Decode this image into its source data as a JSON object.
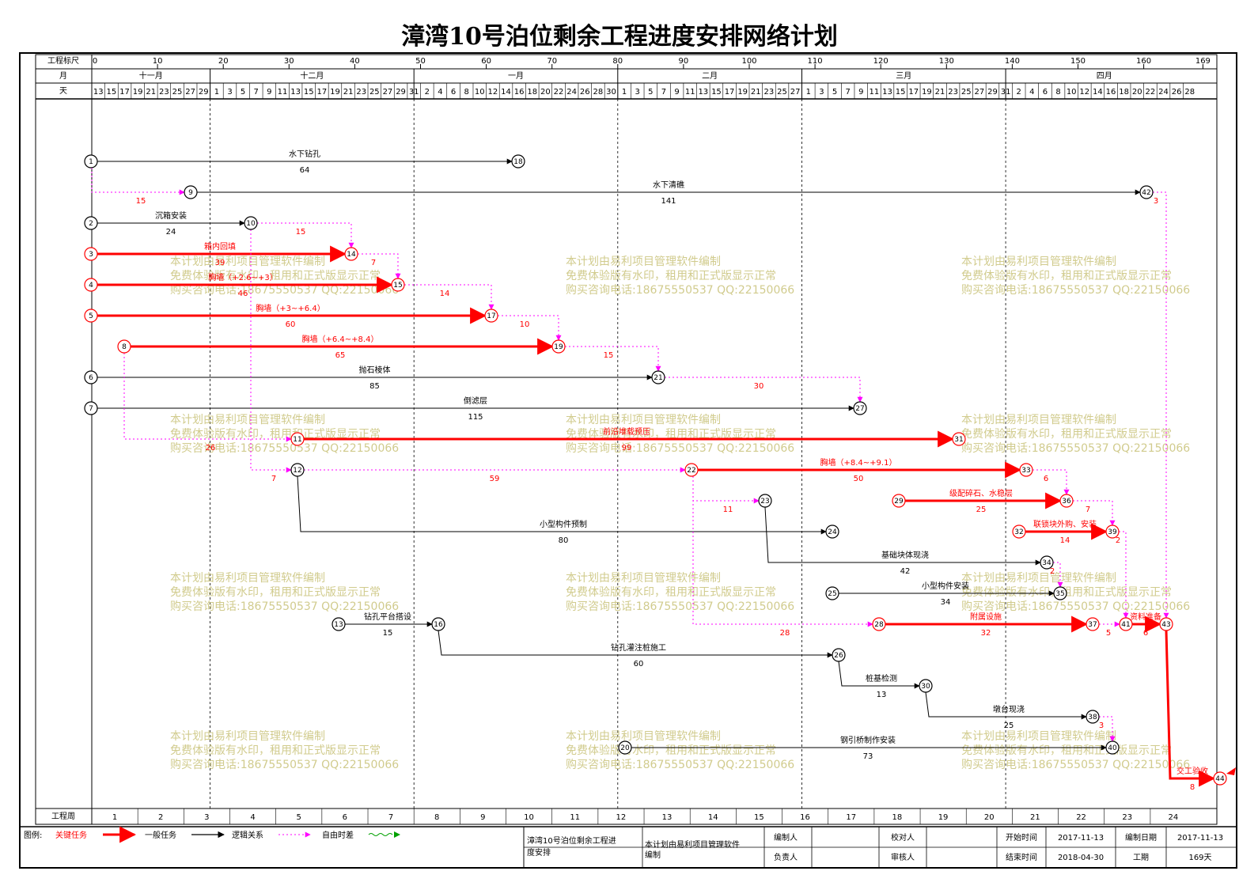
{
  "title": "漳湾10号泊位剩余工程进度安排网络计划",
  "header": {
    "scale_label": "工程标尺",
    "month_label": "月",
    "day_label": "天",
    "week_label": "工程周",
    "scale_ticks": [
      "0",
      "10",
      "20",
      "30",
      "40",
      "50",
      "60",
      "70",
      "80",
      "90",
      "100",
      "110",
      "120",
      "130",
      "140",
      "150",
      "160",
      "169"
    ],
    "months": [
      "十一月",
      "十二月",
      "一月",
      "二月",
      "三月",
      "四月"
    ],
    "days": [
      "13",
      "15",
      "17",
      "19",
      "21",
      "23",
      "25",
      "27",
      "29",
      "1",
      "3",
      "5",
      "7",
      "9",
      "11",
      "13",
      "15",
      "17",
      "19",
      "21",
      "23",
      "25",
      "27",
      "29",
      "31",
      "2",
      "4",
      "6",
      "8",
      "10",
      "12",
      "14",
      "16",
      "18",
      "20",
      "22",
      "24",
      "26",
      "28",
      "30",
      "1",
      "3",
      "5",
      "7",
      "9",
      "11",
      "13",
      "15",
      "17",
      "19",
      "21",
      "23",
      "25",
      "27",
      "1",
      "3",
      "5",
      "7",
      "9",
      "11",
      "13",
      "15",
      "17",
      "19",
      "21",
      "23",
      "25",
      "27",
      "29",
      "31",
      "2",
      "4",
      "6",
      "8",
      "10",
      "12",
      "14",
      "16",
      "18",
      "20",
      "22",
      "24",
      "26",
      "28"
    ],
    "weeks": [
      "1",
      "2",
      "3",
      "4",
      "5",
      "6",
      "7",
      "8",
      "9",
      "10",
      "11",
      "12",
      "13",
      "14",
      "15",
      "16",
      "17",
      "18",
      "19",
      "20",
      "21",
      "22",
      "23",
      "24"
    ]
  },
  "watermark": {
    "line1": "本计划由易利项目管理软件编制",
    "line2": "免费体验版有水印，租用和正式版显示正常",
    "line3": "购买咨询电话:18675550537 QQ:22150066"
  },
  "colors": {
    "critical": "#ff0000",
    "normal": "#000000",
    "float": "#ff00ff",
    "watermark": "#c9c37a"
  },
  "nodes": [
    "1",
    "2",
    "3",
    "4",
    "5",
    "6",
    "7",
    "8",
    "9",
    "10",
    "11",
    "12",
    "13",
    "14",
    "15",
    "16",
    "17",
    "18",
    "19",
    "20",
    "21",
    "22",
    "23",
    "24",
    "25",
    "26",
    "27",
    "28",
    "29",
    "30",
    "31",
    "32",
    "33",
    "34",
    "35",
    "36",
    "37",
    "38",
    "39",
    "40",
    "41",
    "42",
    "43",
    "44"
  ],
  "tasks": [
    {
      "name": "水下钻孔",
      "dur": "64"
    },
    {
      "name": "水下清礁",
      "dur": "141"
    },
    {
      "name": "沉箱安装",
      "dur": "24"
    },
    {
      "name": "箱内回填",
      "dur": "39"
    },
    {
      "name": "胸墙（+2.6~+3）",
      "dur": "46"
    },
    {
      "name": "胸墙（+3~+6.4）",
      "dur": "60"
    },
    {
      "name": "胸墙（+6.4~+8.4）",
      "dur": "65"
    },
    {
      "name": "抛石棱体",
      "dur": "85"
    },
    {
      "name": "倒滤层",
      "dur": "115"
    },
    {
      "name": "前沿堆载预压",
      "dur": "99"
    },
    {
      "name": "胸墙（+8.4~+9.1）",
      "dur": "50"
    },
    {
      "name": "级配碎石、水稳层",
      "dur": "25"
    },
    {
      "name": "小型构件预制",
      "dur": "80"
    },
    {
      "name": "联锁块外购、安装",
      "dur": "14"
    },
    {
      "name": "基础块体现浇",
      "dur": "42"
    },
    {
      "name": "小型构件安装",
      "dur": "34"
    },
    {
      "name": "钻孔平台搭设",
      "dur": "15"
    },
    {
      "name": "附属设施",
      "dur": "32"
    },
    {
      "name": "资料准备",
      "dur": "6"
    },
    {
      "name": "钻孔灌注桩施工",
      "dur": "60"
    },
    {
      "name": "桩基检测",
      "dur": "13"
    },
    {
      "name": "墩台现浇",
      "dur": "25"
    },
    {
      "name": "钢引桥制作安装",
      "dur": "73"
    },
    {
      "name": "交工验收",
      "dur": "8"
    }
  ],
  "floats": [
    "15",
    "15",
    "7",
    "14",
    "10",
    "15",
    "30",
    "26",
    "7",
    "59",
    "11",
    "3",
    "6",
    "7",
    "2",
    "2",
    "28",
    "5",
    "3"
  ],
  "legend": {
    "label": "图例:",
    "critical": "关键任务",
    "normal": "一般任务",
    "logic": "逻辑关系",
    "free_float": "自由时差"
  },
  "footer": {
    "project_name": "漳湾10号泊位剩余工程进度安排",
    "software": "本计划由易利项目管理软件编制",
    "compiler_label": "编制人",
    "checker_label": "校对人",
    "start_label": "开始时间",
    "start_value": "2017-11-13",
    "compile_date_label": "编制日期",
    "compile_date_value": "2017-11-13",
    "manager_label": "负责人",
    "reviewer_label": "审核人",
    "end_label": "结束时间",
    "end_value": "2018-04-30",
    "duration_label": "工期",
    "duration_value": "169天"
  }
}
